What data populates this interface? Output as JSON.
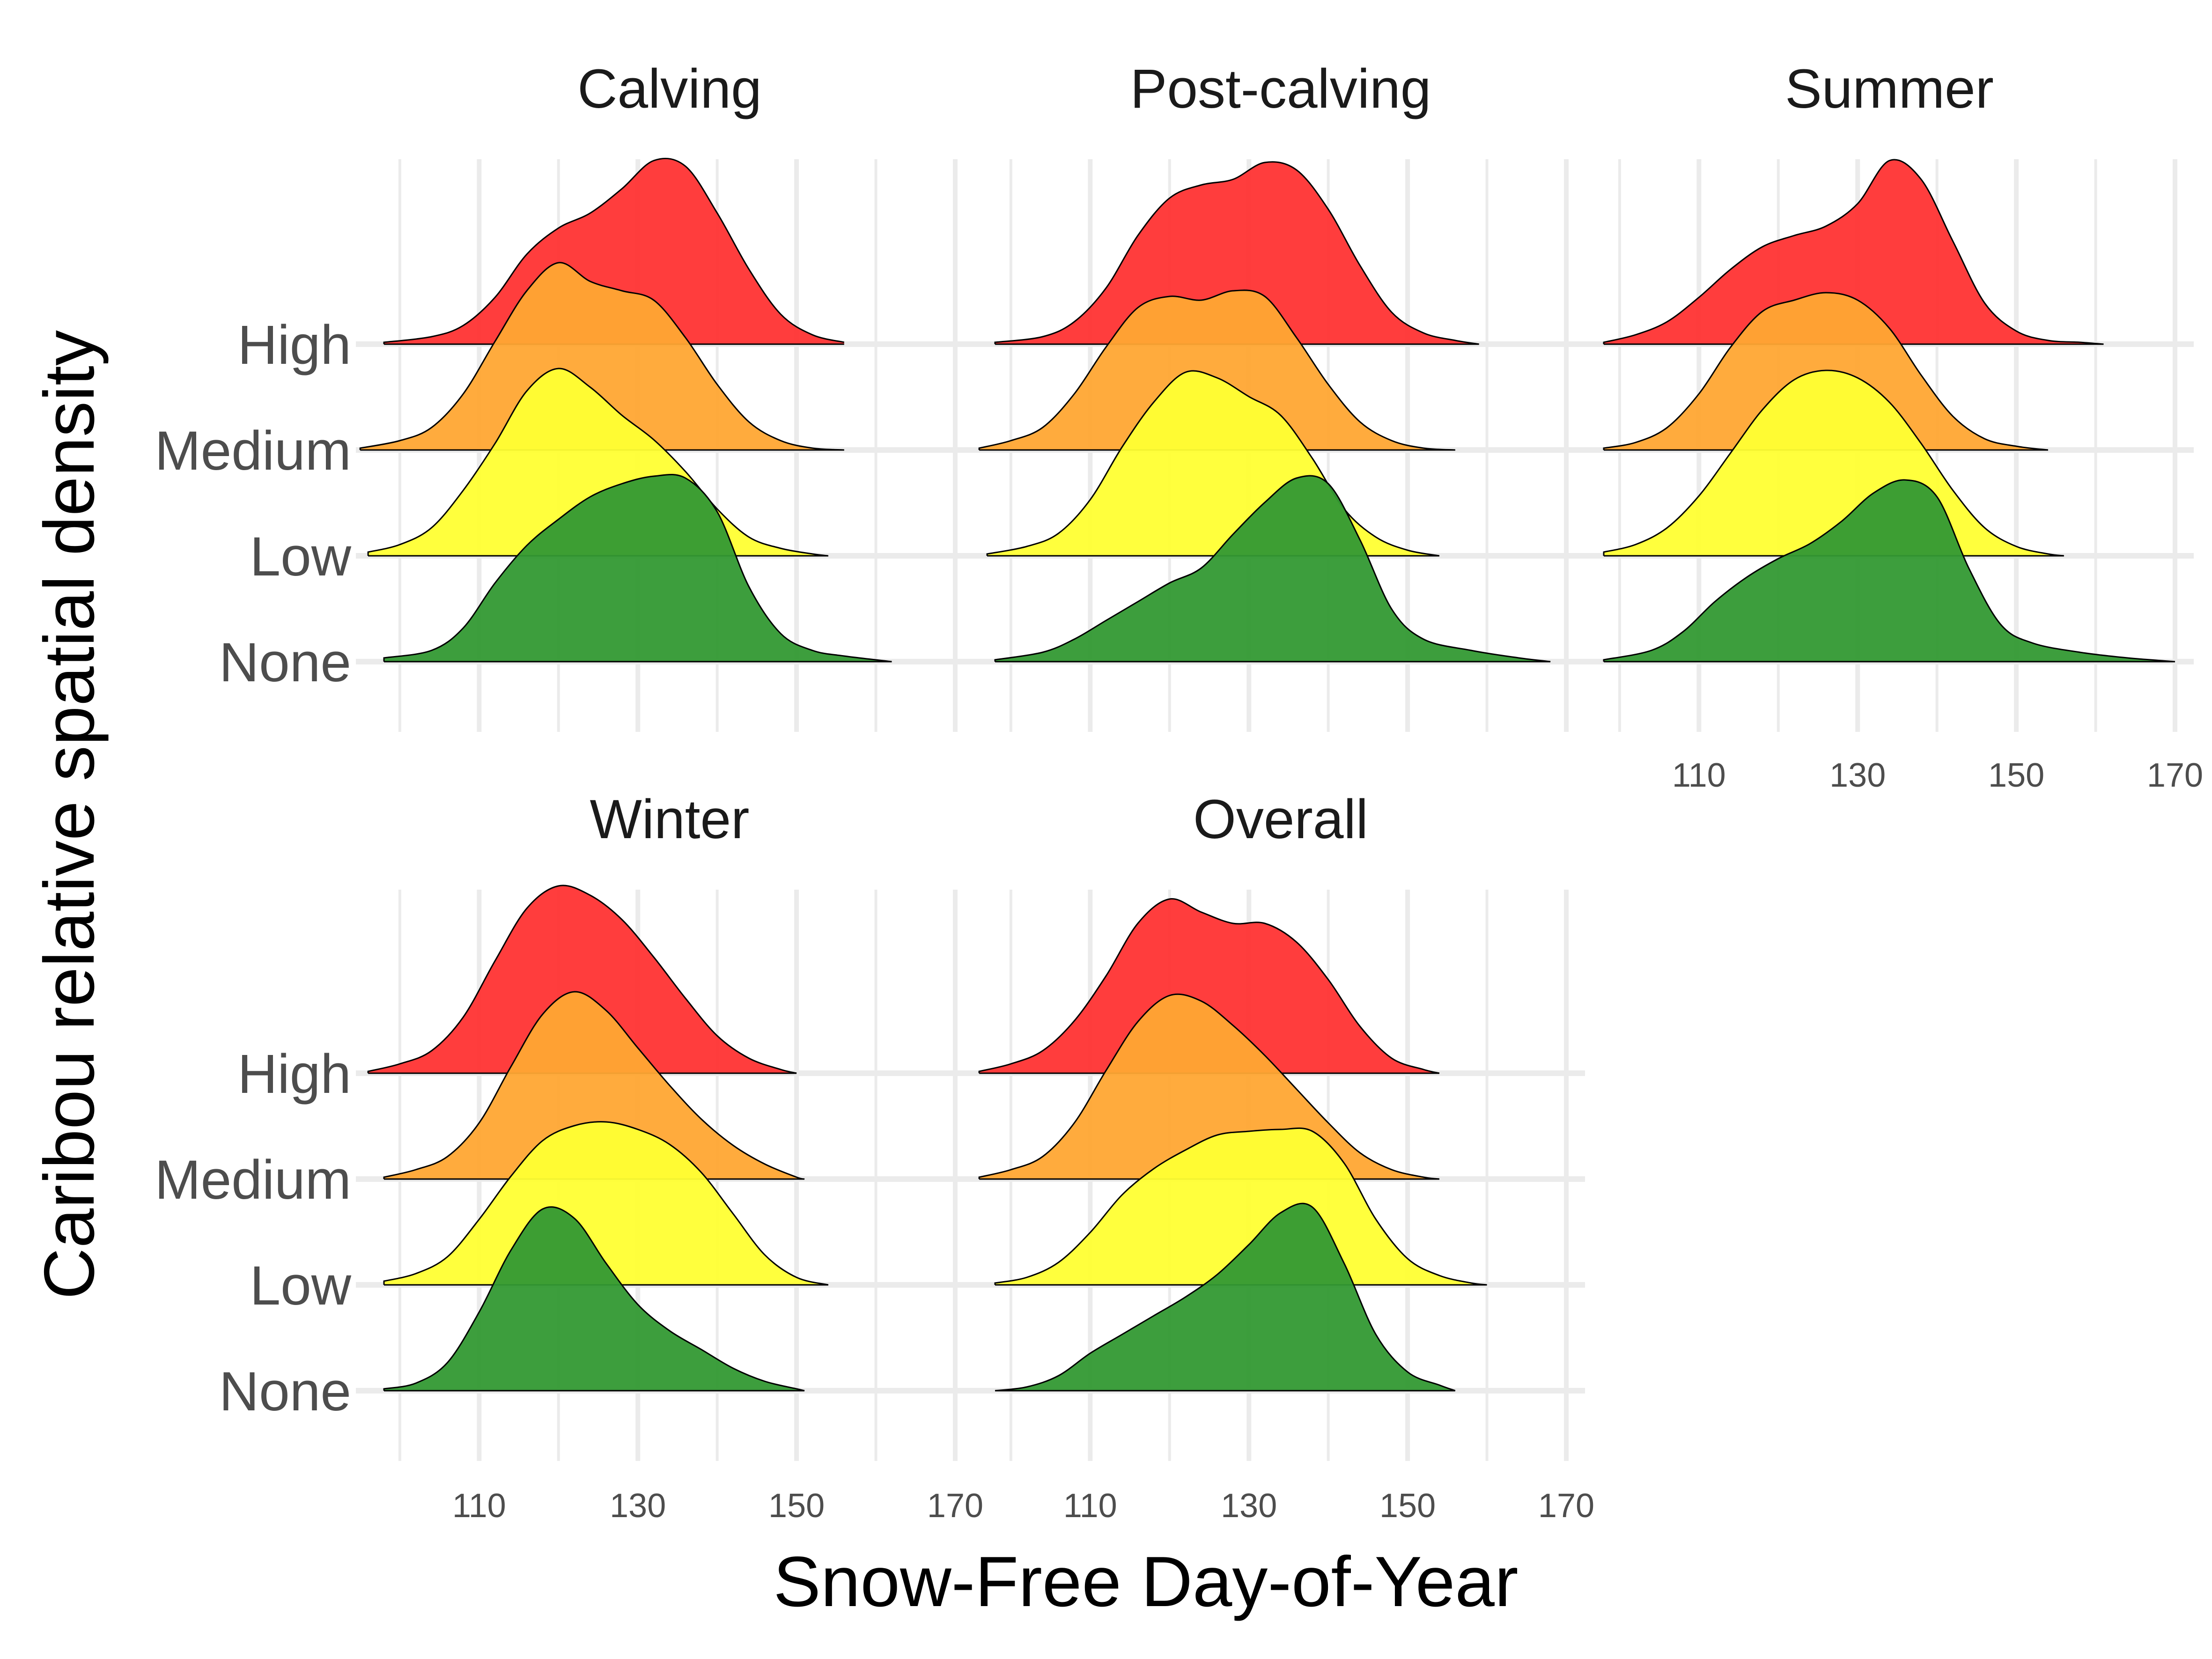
{
  "chart_data": {
    "type": "area",
    "subtype": "ridgeline",
    "xlabel": "Snow-Free Day-of-Year",
    "ylabel": "Caribou relative spatial density",
    "x_ticks": [
      110,
      130,
      150,
      170
    ],
    "xlim": [
      98,
      170
    ],
    "categories": [
      "None",
      "Low",
      "Medium",
      "High"
    ],
    "colors": {
      "High": "#ff3333",
      "Medium": "#ffa733",
      "Low": "#ffff33",
      "None": "#339933"
    },
    "grid": true,
    "legend": "none",
    "panels": [
      {
        "title": "Calving",
        "series": [
          {
            "name": "None",
            "x": [
              98,
              104,
              108,
              112,
              116,
              120,
              124,
              128,
              132,
              136,
              140,
              144,
              148,
              152,
              156,
              162
            ],
            "density": [
              0.02,
              0.06,
              0.18,
              0.42,
              0.62,
              0.76,
              0.88,
              0.95,
              0.99,
              0.98,
              0.8,
              0.4,
              0.15,
              0.06,
              0.03,
              0
            ]
          },
          {
            "name": "Low",
            "x": [
              96,
              100,
              104,
              108,
              112,
              116,
              120,
              124,
              128,
              132,
              136,
              140,
              144,
              148,
              152,
              154
            ],
            "density": [
              0.02,
              0.06,
              0.15,
              0.35,
              0.6,
              0.88,
              1.0,
              0.9,
              0.75,
              0.62,
              0.45,
              0.25,
              0.1,
              0.04,
              0.01,
              0
            ]
          },
          {
            "name": "Medium",
            "x": [
              95,
              100,
              104,
              108,
              112,
              116,
              120,
              124,
              128,
              132,
              136,
              140,
              144,
              148,
              152,
              156
            ],
            "density": [
              0.01,
              0.05,
              0.12,
              0.3,
              0.58,
              0.85,
              1.0,
              0.9,
              0.85,
              0.8,
              0.6,
              0.35,
              0.15,
              0.05,
              0.01,
              0
            ]
          },
          {
            "name": "High",
            "x": [
              98,
              104,
              108,
              112,
              116,
              120,
              124,
              128,
              132,
              136,
              140,
              144,
              148,
              152,
              156
            ],
            "density": [
              0.01,
              0.04,
              0.1,
              0.25,
              0.48,
              0.62,
              0.7,
              0.83,
              0.98,
              0.95,
              0.7,
              0.4,
              0.16,
              0.05,
              0.01
            ]
          }
        ]
      },
      {
        "title": "Post-calving",
        "series": [
          {
            "name": "None",
            "x": [
              98,
              104,
              108,
              112,
              116,
              120,
              124,
              128,
              132,
              136,
              140,
              144,
              148,
              152,
              158,
              164,
              168
            ],
            "density": [
              0.01,
              0.05,
              0.12,
              0.22,
              0.32,
              0.42,
              0.5,
              0.68,
              0.85,
              0.98,
              0.95,
              0.65,
              0.28,
              0.12,
              0.06,
              0.02,
              0
            ]
          },
          {
            "name": "Low",
            "x": [
              97,
              102,
              106,
              110,
              114,
              118,
              122,
              126,
              130,
              134,
              138,
              142,
              146,
              150,
              154
            ],
            "density": [
              0.01,
              0.05,
              0.12,
              0.3,
              0.58,
              0.82,
              0.98,
              0.95,
              0.85,
              0.75,
              0.52,
              0.25,
              0.1,
              0.03,
              0
            ]
          },
          {
            "name": "Medium",
            "x": [
              96,
              100,
              104,
              108,
              112,
              116,
              120,
              124,
              128,
              132,
              136,
              140,
              144,
              148,
              152,
              156
            ],
            "density": [
              0.01,
              0.05,
              0.12,
              0.3,
              0.55,
              0.76,
              0.82,
              0.8,
              0.85,
              0.82,
              0.6,
              0.35,
              0.15,
              0.05,
              0.01,
              0
            ]
          },
          {
            "name": "High",
            "x": [
              98,
              104,
              108,
              112,
              116,
              120,
              124,
              128,
              132,
              136,
              140,
              144,
              148,
              152,
              156,
              159
            ],
            "density": [
              0.01,
              0.04,
              0.12,
              0.3,
              0.58,
              0.78,
              0.85,
              0.88,
              0.97,
              0.93,
              0.72,
              0.42,
              0.17,
              0.06,
              0.02,
              0
            ]
          }
        ]
      },
      {
        "title": "Summer",
        "series": [
          {
            "name": "None",
            "x": [
              98,
              104,
              108,
              112,
              116,
              120,
              124,
              128,
              132,
              136,
              140,
              144,
              148,
              152,
              158,
              164,
              170
            ],
            "density": [
              0.01,
              0.06,
              0.16,
              0.32,
              0.45,
              0.55,
              0.63,
              0.75,
              0.9,
              0.97,
              0.88,
              0.5,
              0.2,
              0.1,
              0.05,
              0.02,
              0
            ]
          },
          {
            "name": "Low",
            "x": [
              98,
              102,
              106,
              110,
              114,
              118,
              122,
              126,
              130,
              134,
              138,
              142,
              146,
              150,
              154,
              156
            ],
            "density": [
              0.02,
              0.06,
              0.15,
              0.32,
              0.55,
              0.78,
              0.94,
              0.99,
              0.95,
              0.82,
              0.6,
              0.35,
              0.15,
              0.05,
              0.01,
              0
            ]
          },
          {
            "name": "Medium",
            "x": [
              98,
              102,
              106,
              110,
              114,
              118,
              122,
              126,
              130,
              134,
              138,
              142,
              146,
              150,
              154
            ],
            "density": [
              0.01,
              0.04,
              0.12,
              0.3,
              0.55,
              0.74,
              0.8,
              0.84,
              0.8,
              0.65,
              0.4,
              0.18,
              0.06,
              0.02,
              0
            ]
          },
          {
            "name": "High",
            "x": [
              98,
              102,
              106,
              110,
              114,
              118,
              122,
              126,
              130,
              134,
              138,
              142,
              146,
              150,
              154,
              158,
              161
            ],
            "density": [
              0.01,
              0.05,
              0.12,
              0.25,
              0.4,
              0.52,
              0.58,
              0.63,
              0.75,
              0.98,
              0.88,
              0.55,
              0.22,
              0.07,
              0.02,
              0.01,
              0
            ]
          }
        ]
      },
      {
        "title": "Winter",
        "series": [
          {
            "name": "None",
            "x": [
              98,
              102,
              106,
              110,
              114,
              118,
              122,
              126,
              130,
              134,
              138,
              142,
              146,
              150,
              151
            ],
            "density": [
              0.01,
              0.04,
              0.15,
              0.42,
              0.75,
              0.97,
              0.92,
              0.68,
              0.46,
              0.32,
              0.22,
              0.12,
              0.05,
              0.01,
              0
            ]
          },
          {
            "name": "Low",
            "x": [
              98,
              102,
              106,
              110,
              114,
              118,
              122,
              126,
              130,
              134,
              138,
              142,
              146,
              150,
              154
            ],
            "density": [
              0.02,
              0.06,
              0.15,
              0.35,
              0.58,
              0.77,
              0.85,
              0.87,
              0.83,
              0.75,
              0.6,
              0.38,
              0.16,
              0.04,
              0
            ]
          },
          {
            "name": "Medium",
            "x": [
              98,
              102,
              106,
              110,
              114,
              118,
              122,
              126,
              130,
              134,
              138,
              142,
              146,
              150,
              151
            ],
            "density": [
              0.01,
              0.05,
              0.12,
              0.3,
              0.6,
              0.88,
              1.0,
              0.9,
              0.7,
              0.5,
              0.32,
              0.18,
              0.08,
              0.01,
              0
            ]
          },
          {
            "name": "High",
            "x": [
              96,
              100,
              104,
              108,
              112,
              116,
              120,
              124,
              128,
              132,
              136,
              140,
              144,
              148,
              150
            ],
            "density": [
              0.01,
              0.05,
              0.12,
              0.3,
              0.6,
              0.88,
              1.0,
              0.95,
              0.82,
              0.62,
              0.4,
              0.2,
              0.08,
              0.02,
              0
            ]
          }
        ]
      },
      {
        "title": "Overall",
        "series": [
          {
            "name": "None",
            "x": [
              98,
              102,
              106,
              110,
              114,
              118,
              122,
              126,
              130,
              134,
              138,
              142,
              146,
              150,
              154,
              156
            ],
            "density": [
              0.0,
              0.02,
              0.08,
              0.2,
              0.3,
              0.4,
              0.5,
              0.62,
              0.78,
              0.95,
              0.98,
              0.68,
              0.3,
              0.1,
              0.03,
              0
            ]
          },
          {
            "name": "Low",
            "x": [
              98,
              102,
              106,
              110,
              114,
              118,
              122,
              126,
              130,
              134,
              138,
              142,
              146,
              150,
              154,
              158,
              160
            ],
            "density": [
              0.01,
              0.04,
              0.12,
              0.28,
              0.48,
              0.62,
              0.72,
              0.8,
              0.82,
              0.83,
              0.82,
              0.65,
              0.35,
              0.14,
              0.05,
              0.01,
              0
            ]
          },
          {
            "name": "Medium",
            "x": [
              96,
              100,
              104,
              108,
              112,
              116,
              120,
              124,
              128,
              132,
              136,
              140,
              144,
              148,
              152,
              154
            ],
            "density": [
              0.01,
              0.05,
              0.12,
              0.3,
              0.58,
              0.84,
              0.98,
              0.95,
              0.82,
              0.66,
              0.48,
              0.3,
              0.14,
              0.05,
              0.01,
              0
            ]
          },
          {
            "name": "High",
            "x": [
              96,
              100,
              104,
              108,
              112,
              116,
              120,
              124,
              128,
              132,
              136,
              140,
              144,
              148,
              152,
              154
            ],
            "density": [
              0.01,
              0.05,
              0.12,
              0.28,
              0.52,
              0.8,
              0.93,
              0.86,
              0.8,
              0.8,
              0.7,
              0.5,
              0.25,
              0.08,
              0.02,
              0
            ]
          }
        ]
      }
    ]
  }
}
